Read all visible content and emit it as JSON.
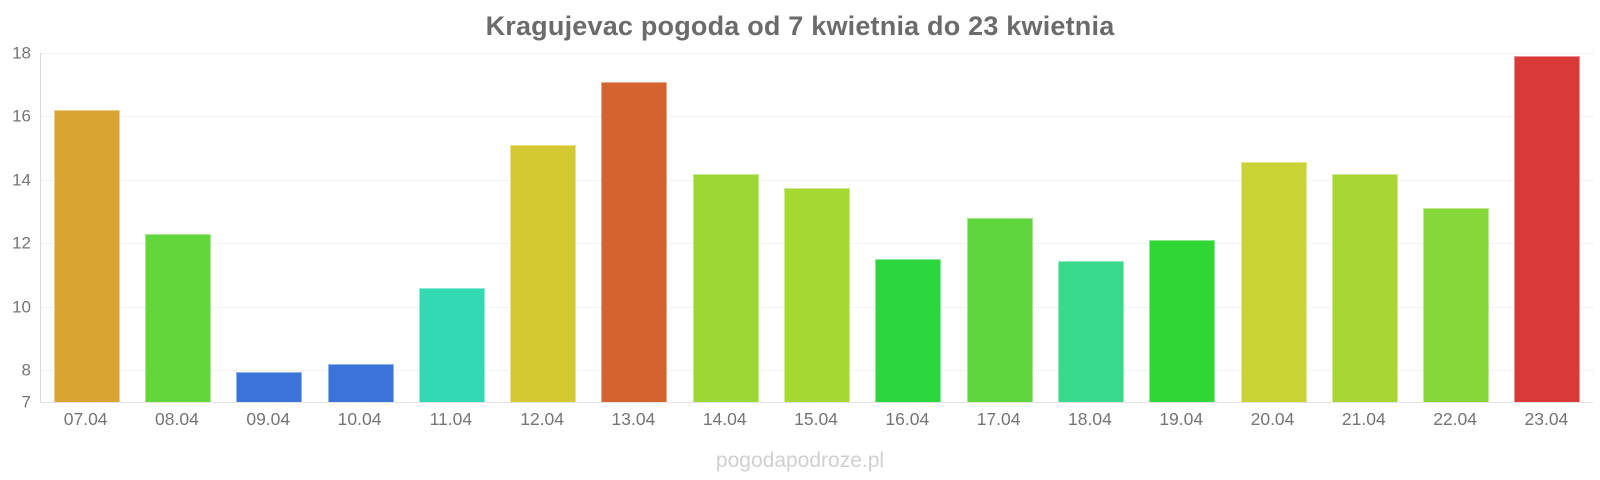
{
  "watermark": "pogodapodroze.pl",
  "colors": {
    "background": "#ffffff",
    "title_text": "#6b6b6b",
    "axis_label_text": "#757575",
    "gridline": "#e9e9e9",
    "y_axis_line": "#d9d9d9",
    "x_axis_line": "#e2e2e2",
    "watermark_text": "#d0d0d0"
  },
  "chart_data": {
    "type": "bar",
    "title": "Kragujevac pogoda od 7 kwietnia do 23 kwietnia",
    "xlabel": "",
    "ylabel": "",
    "categories": [
      "07.04",
      "08.04",
      "09.04",
      "10.04",
      "11.04",
      "12.04",
      "13.04",
      "14.04",
      "15.04",
      "16.04",
      "17.04",
      "18.04",
      "19.04",
      "20.04",
      "21.04",
      "22.04",
      "23.04"
    ],
    "values": [
      16.2,
      12.3,
      7.95,
      8.2,
      10.6,
      15.1,
      17.1,
      14.2,
      13.75,
      11.5,
      12.8,
      11.45,
      12.1,
      14.55,
      14.2,
      13.1,
      17.9
    ],
    "bar_colors": [
      "#d9a431",
      "#62d63b",
      "#3b73d9",
      "#3b73d9",
      "#32d9b2",
      "#d4c930",
      "#d4632d",
      "#9cd833",
      "#a6d834",
      "#2cd63e",
      "#5ed53a",
      "#38d98c",
      "#2fd636",
      "#c9d434",
      "#a8d735",
      "#86d73a",
      "#d93a38"
    ],
    "ylim": [
      7,
      18
    ],
    "yticks": [
      18,
      16,
      14,
      12,
      10,
      8,
      7
    ],
    "grid": "horizontal-light-dotted-at-labeled-ticks",
    "legend": "none"
  }
}
